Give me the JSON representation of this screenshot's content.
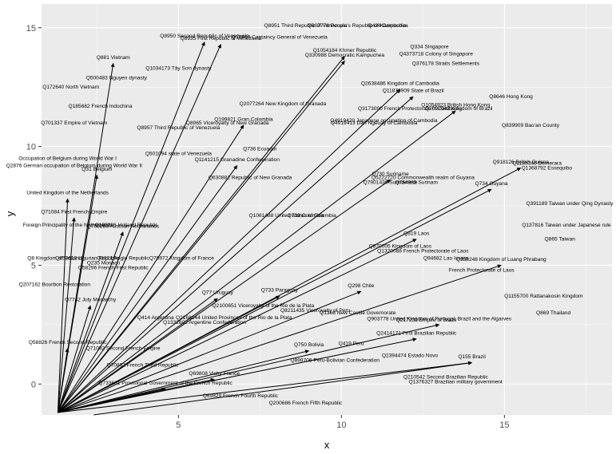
{
  "chart_data": {
    "type": "vector-field-with-labels",
    "title": "",
    "xlabel": "x",
    "ylabel": "y",
    "xlim": [
      0.8,
      18.3
    ],
    "ylim": [
      -1.3,
      16.0
    ],
    "xticks": [
      5,
      10,
      15
    ],
    "yticks": [
      0,
      5,
      10,
      15
    ],
    "grid": true,
    "origin": [
      1.3,
      -1.2
    ],
    "arrows": [
      {
        "x": 6.3,
        "y": 14.3,
        "label": "Q8935 First Republic of Venezuela"
      },
      {
        "x": 3.0,
        "y": 13.5,
        "label": "Q881 Vietnam"
      },
      {
        "x": 5.8,
        "y": 14.4,
        "label": "Q8950 Second Republic of Venezuela"
      },
      {
        "x": 10.1,
        "y": 13.6,
        "label": "Q330988 Democratic Kampuchea"
      },
      {
        "x": 10.1,
        "y": 13.8,
        "label": "Q1054184 Khmer Republic"
      },
      {
        "x": 11.8,
        "y": 12.4,
        "label": "Q2638486 Kingdom of Cambodia"
      },
      {
        "x": 12.2,
        "y": 12.1,
        "label": "Q11876909 State of Brazil"
      },
      {
        "x": 13.5,
        "y": 11.5,
        "label": "Q1054923 British Hong Kong"
      },
      {
        "x": 2.5,
        "y": 8.8,
        "label": "Q31 Belgium"
      },
      {
        "x": 1.6,
        "y": 7.8,
        "label": "United Kingdom of the Netherlands"
      },
      {
        "x": 1.8,
        "y": 7.0,
        "label": "Q71084 First French Empire"
      },
      {
        "x": 3.3,
        "y": 6.4,
        "label": "Q700283 Austrian Netherlands"
      },
      {
        "x": 7.0,
        "y": 10.9,
        "label": "Q199821 Gran Colombia"
      },
      {
        "x": 6.8,
        "y": 9.2,
        "label": "Q1141215 Granadine Confederation"
      },
      {
        "x": 11.5,
        "y": 8.6,
        "label": "Q730 Suriname"
      },
      {
        "x": 15.5,
        "y": 9.1,
        "label": "Q918126 British Guiana"
      },
      {
        "x": 14.6,
        "y": 8.2,
        "label": "Q734 Guyana"
      },
      {
        "x": 12.3,
        "y": 6.1,
        "label": "Q819 Laos"
      },
      {
        "x": 14.9,
        "y": 5.0,
        "label": "Q338248 Kingdom of Luang Phrabang"
      },
      {
        "x": 8.1,
        "y": 3.7,
        "label": "Q733 Paraguay"
      },
      {
        "x": 10.6,
        "y": 3.9,
        "label": "Q298 Chile"
      },
      {
        "x": 6.2,
        "y": 3.6,
        "label": "Q77 Uruguay"
      },
      {
        "x": 13.0,
        "y": 2.5,
        "label": "Q903778 United Kingdom of Portugal, Brazil and the Algarves"
      },
      {
        "x": 12.3,
        "y": 1.9,
        "label": "Q2414171 First Brazilian Republic"
      },
      {
        "x": 9.0,
        "y": 1.4,
        "label": "Q750 Bolivia"
      },
      {
        "x": 14.0,
        "y": 0.9,
        "label": "Q155 Brazil"
      },
      {
        "x": 2.3,
        "y": 3.3,
        "label": "Q7742 July Monarchy"
      },
      {
        "x": 1.6,
        "y": 1.5,
        "label": "Q58826 French Second Republic"
      },
      {
        "x": 6.1,
        "y": 0.2,
        "label": "Q69808 Vichy France"
      },
      {
        "x": 4.6,
        "y": -0.2,
        "label": "Q733681 Provisional Government of the French Republic"
      }
    ],
    "points": [
      {
        "x": 8.9,
        "y": 15.1,
        "label": "Q8951 Third Republic of Venezuela"
      },
      {
        "x": 10.5,
        "y": 15.1,
        "label": "Q907778 People's Republic of Kampuchea"
      },
      {
        "x": 11.4,
        "y": 15.1,
        "label": "Q424 Cambodia"
      },
      {
        "x": 8.1,
        "y": 14.6,
        "label": "Q10469 Captaincy General of Venezuela"
      },
      {
        "x": 12.7,
        "y": 14.2,
        "label": "Q334 Singapore"
      },
      {
        "x": 12.9,
        "y": 13.9,
        "label": "Q4373718 Colony of Singapore"
      },
      {
        "x": 13.2,
        "y": 13.5,
        "label": "Q376178 Straits Settlements"
      },
      {
        "x": 5.0,
        "y": 13.3,
        "label": "Q1034173 Tây Sơn dynasty"
      },
      {
        "x": 3.1,
        "y": 12.9,
        "label": "Q500483 Nguyen dynasty"
      },
      {
        "x": 1.7,
        "y": 12.5,
        "label": "Q172640 North Vietnam"
      },
      {
        "x": 15.2,
        "y": 12.1,
        "label": "Q8646 Hong Kong"
      },
      {
        "x": 8.2,
        "y": 11.8,
        "label": "Q2077264 New Kingdom of Granada"
      },
      {
        "x": 12.1,
        "y": 11.6,
        "label": "Q3173090 French Protectorate of Cambodia"
      },
      {
        "x": 13.6,
        "y": 11.6,
        "label": "Q2092042 Kingdom of Brazil"
      },
      {
        "x": 2.6,
        "y": 11.7,
        "label": "Q185682 French Indochina"
      },
      {
        "x": 11.3,
        "y": 11.1,
        "label": "Q4919420 Japanese occupation of Cambodia"
      },
      {
        "x": 11.0,
        "y": 11.0,
        "label": "Q4919413 Dan Ngeuay of Cambodia"
      },
      {
        "x": 6.5,
        "y": 11.0,
        "label": "Q8965 Viceroyalty of New Granada"
      },
      {
        "x": 1.8,
        "y": 11.0,
        "label": "Q701337 Empire of Vietnam"
      },
      {
        "x": 5.0,
        "y": 10.8,
        "label": "Q8957 Third Republic of Venezuela"
      },
      {
        "x": 15.8,
        "y": 10.9,
        "label": "Q839909 Bao'an County"
      },
      {
        "x": 7.5,
        "y": 9.9,
        "label": "Q736 Ecuador"
      },
      {
        "x": 5.0,
        "y": 9.7,
        "label": "Q501094 state of Venezuela"
      },
      {
        "x": 1.6,
        "y": 9.5,
        "label": "Occupation of Belgium during World War I"
      },
      {
        "x": 1.8,
        "y": 9.2,
        "label": "Q2876 German occupation of Belgium during World War II"
      },
      {
        "x": 16.0,
        "y": 9.3,
        "label": "Q1185346 Demerara"
      },
      {
        "x": 16.3,
        "y": 9.1,
        "label": "Q1368792 Essequibo"
      },
      {
        "x": 12.5,
        "y": 8.7,
        "label": "Q5222720 Commonwealth realm of Guyana"
      },
      {
        "x": 7.2,
        "y": 8.7,
        "label": "Q630882 Republic of New Granada"
      },
      {
        "x": 11.5,
        "y": 8.5,
        "label": "Q7901436 Surinamese"
      },
      {
        "x": 12.3,
        "y": 8.5,
        "label": "Q754985 Surinam"
      },
      {
        "x": 17.0,
        "y": 7.6,
        "label": "Q391189 Taiwan under Qing Dynasty"
      },
      {
        "x": 16.9,
        "y": 6.7,
        "label": "Q137816 Taiwan under Japanese rule"
      },
      {
        "x": 16.7,
        "y": 6.1,
        "label": "Q865 Taiwan"
      },
      {
        "x": 1.6,
        "y": 6.7,
        "label": "Foreign Principality of the Netherlands"
      },
      {
        "x": 3.4,
        "y": 6.7,
        "label": "Q193296 Holland Republic"
      },
      {
        "x": 8.5,
        "y": 7.1,
        "label": "Q1061488 United States of Colombia"
      },
      {
        "x": 8.9,
        "y": 7.1,
        "label": "Q739 Colombia"
      },
      {
        "x": 11.8,
        "y": 5.8,
        "label": "Q870005 Kingdom of Laos"
      },
      {
        "x": 12.5,
        "y": 5.6,
        "label": "Q1320088 French Protectorate of Laos"
      },
      {
        "x": 13.2,
        "y": 5.3,
        "label": "Q94682 Lao Issara"
      },
      {
        "x": 14.3,
        "y": 4.8,
        "label": "French Protectorate of Laos"
      },
      {
        "x": 1.2,
        "y": 5.3,
        "label": "Q8 Kingdom of Holland"
      },
      {
        "x": 2.2,
        "y": 5.3,
        "label": "Q653612 Ligurian Republic"
      },
      {
        "x": 3.3,
        "y": 5.3,
        "label": "Q1321 Anglo Republic"
      },
      {
        "x": 5.1,
        "y": 5.3,
        "label": "Q70972 Kingdom of France"
      },
      {
        "x": 2.7,
        "y": 5.1,
        "label": "Q235 Monaco"
      },
      {
        "x": 3.0,
        "y": 4.9,
        "label": "Q58296 French First Republic"
      },
      {
        "x": 1.2,
        "y": 4.2,
        "label": "Q207162 Bourbon Restoration"
      },
      {
        "x": 16.2,
        "y": 3.7,
        "label": "Q1155700 Rattanakosin Kingdom"
      },
      {
        "x": 7.6,
        "y": 3.3,
        "label": "Q2100651 Viceroyalty of the Rio de la Plata"
      },
      {
        "x": 9.2,
        "y": 3.1,
        "label": "Q8211435 Viceroyalty of Peru"
      },
      {
        "x": 10.5,
        "y": 3.0,
        "label": "Q1366 New Castile Governorate"
      },
      {
        "x": 4.3,
        "y": 2.8,
        "label": "Q414 Argentina"
      },
      {
        "x": 6.7,
        "y": 2.8,
        "label": "Q2168144 United Provinces of the Rio de la Plata"
      },
      {
        "x": 5.8,
        "y": 2.6,
        "label": "Q1332602 Argentine Confederation"
      },
      {
        "x": 16.5,
        "y": 3.0,
        "label": "Q869 Thailand"
      },
      {
        "x": 12.6,
        "y": 2.7,
        "label": "Q217230 Empire of Brazil"
      },
      {
        "x": 10.3,
        "y": 1.7,
        "label": "Q419 Peru"
      },
      {
        "x": 12.1,
        "y": 1.2,
        "label": "Q2394474 Estado Novo"
      },
      {
        "x": 9.8,
        "y": 1.0,
        "label": "Q899706 Peru-Bolivian Confederation"
      },
      {
        "x": 3.3,
        "y": 1.5,
        "label": "Q71092 Second French Empire"
      },
      {
        "x": 3.9,
        "y": 0.8,
        "label": "Q70802 French Third Republic"
      },
      {
        "x": 13.2,
        "y": 0.3,
        "label": "Q210542 Second Brazilian Republic"
      },
      {
        "x": 13.5,
        "y": 0.1,
        "label": "Q1376327 Brazilian military government"
      },
      {
        "x": 6.9,
        "y": -0.5,
        "label": "Q69829 French Fourth Republic"
      },
      {
        "x": 8.9,
        "y": -0.8,
        "label": "Q200686 French Fifth Republic"
      }
    ],
    "extra_arrows": [
      {
        "x0": 2.4,
        "y0": -1.3,
        "x1": 14.0,
        "y1": 0.9
      }
    ]
  }
}
